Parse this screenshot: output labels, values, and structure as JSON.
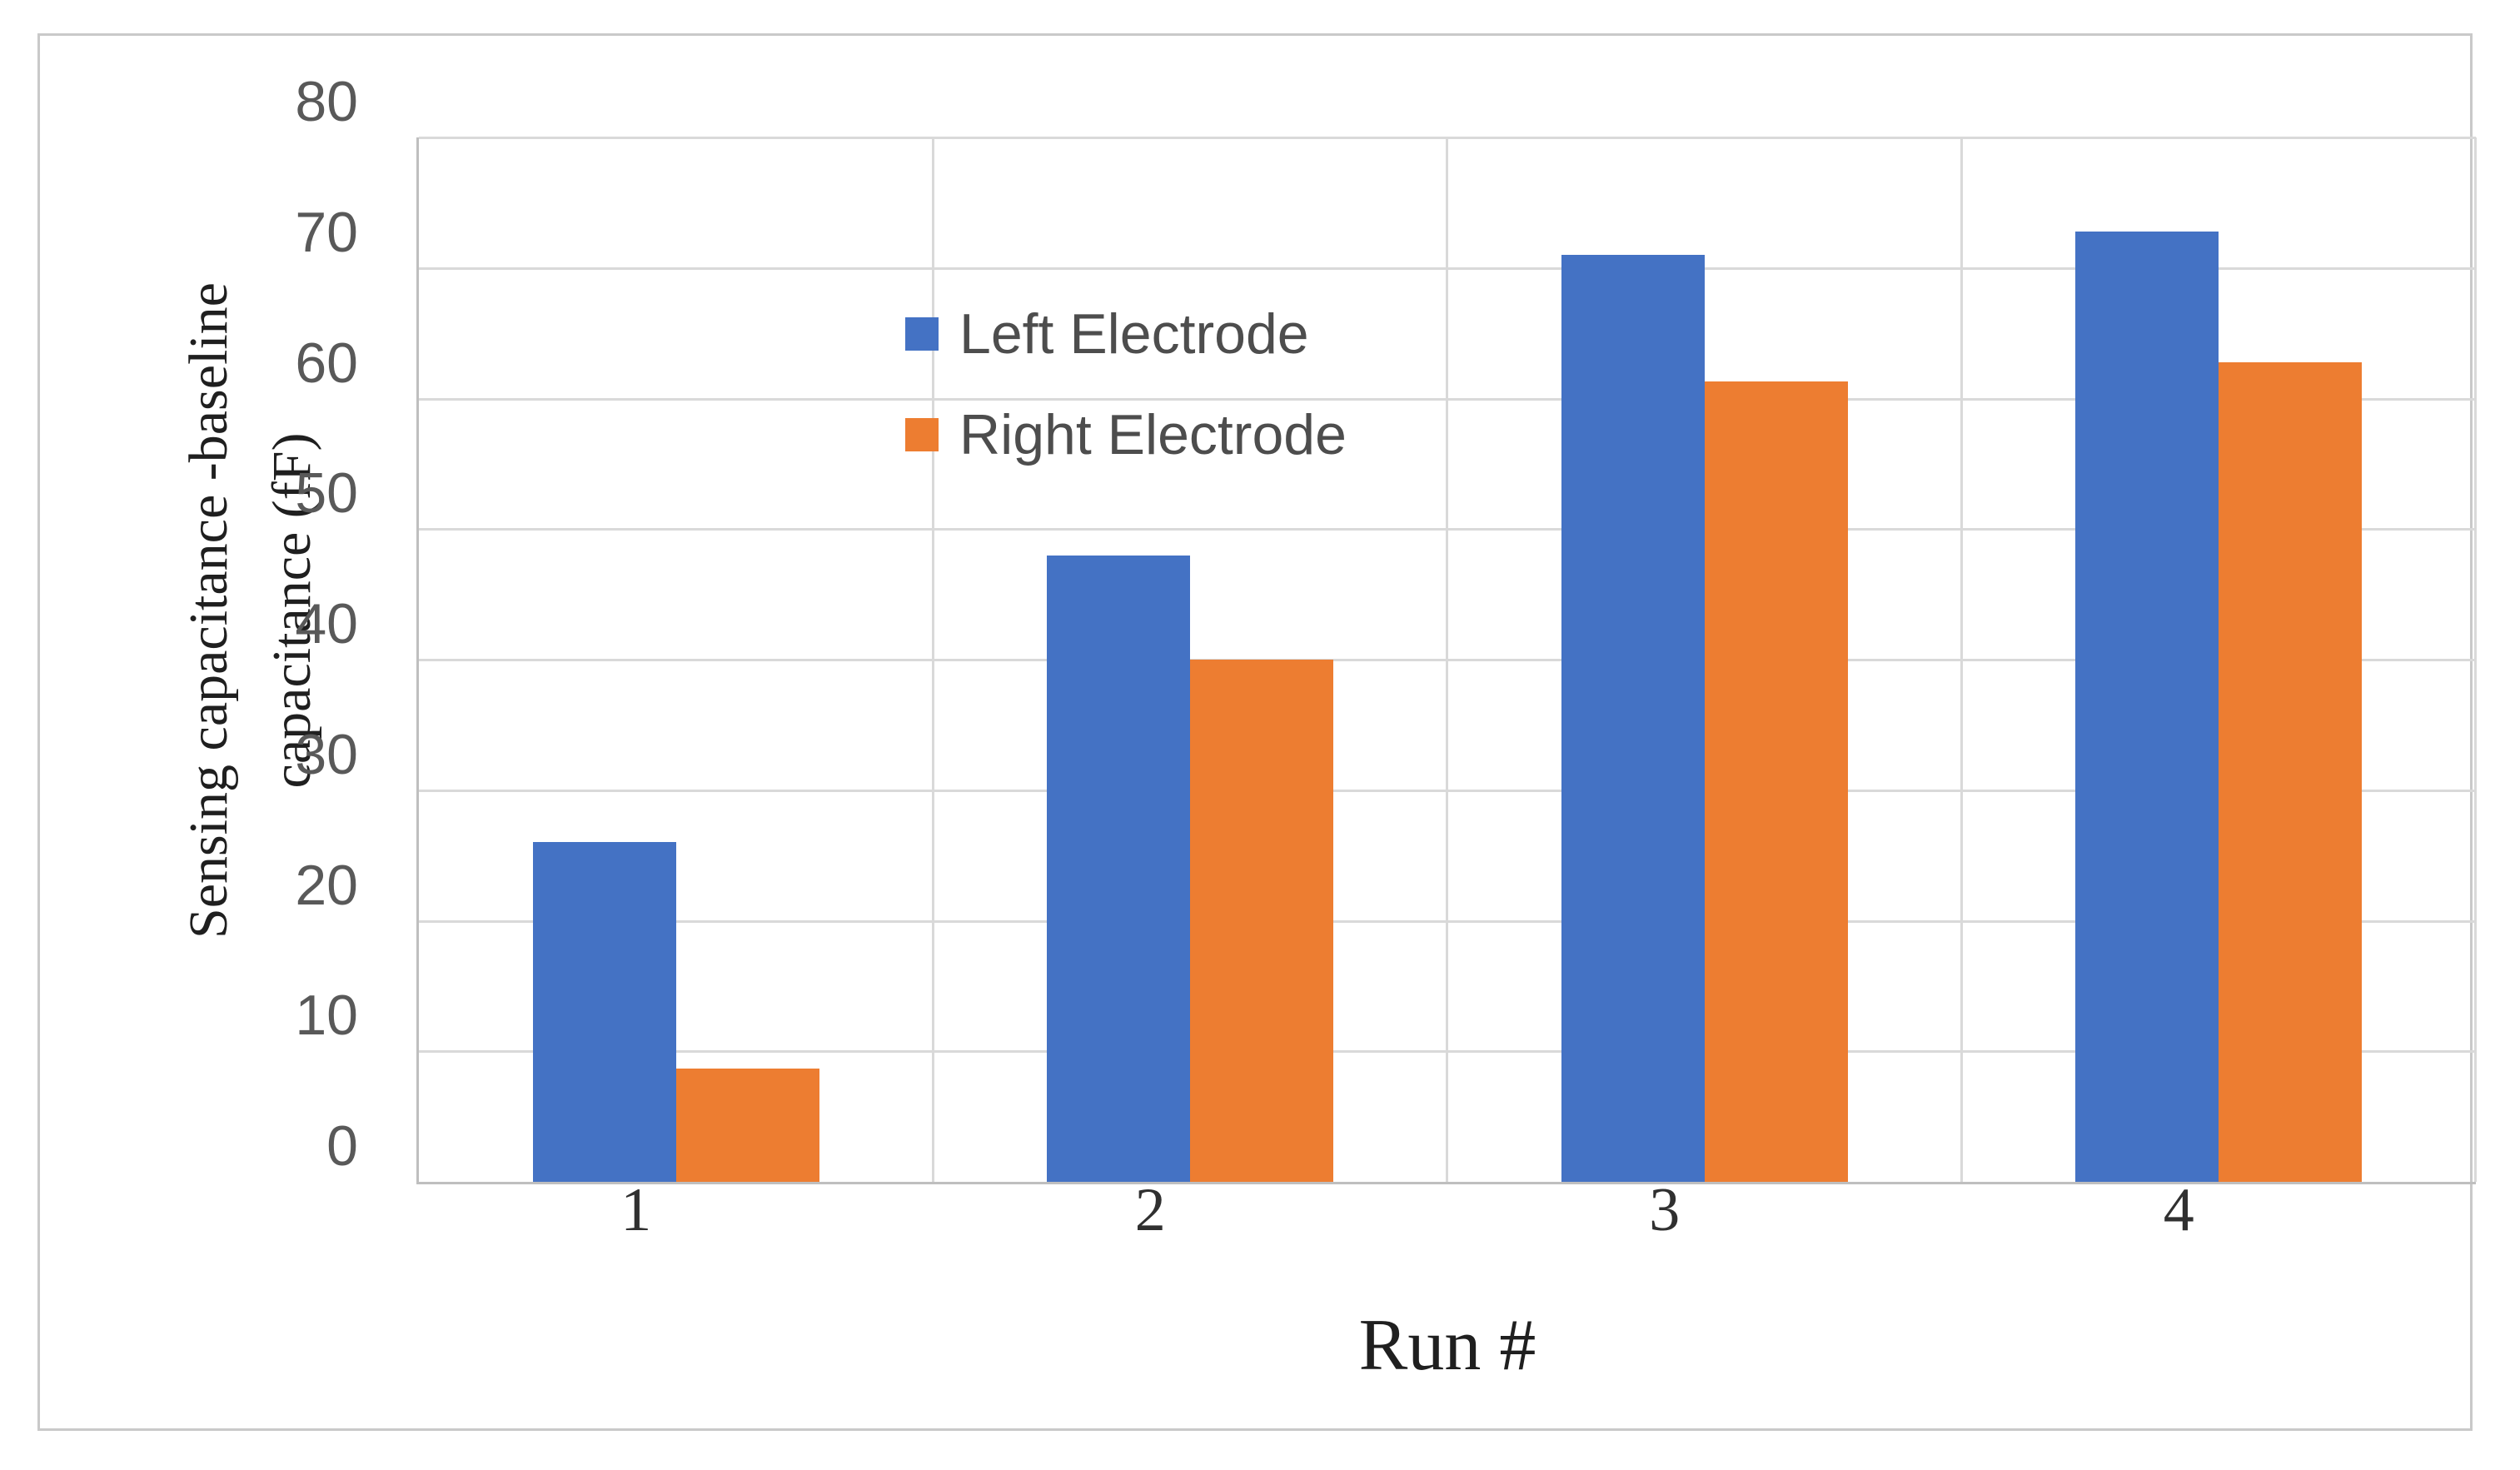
{
  "figure": {
    "background_color": "#ffffff",
    "border_color": "#c9c9c9"
  },
  "chart_data": {
    "type": "bar",
    "title": "",
    "categories": [
      "1",
      "2",
      "3",
      "4"
    ],
    "series": [
      {
        "name": "Left Electrode",
        "color": "#4472C4",
        "values": [
          26.0,
          48.0,
          71.0,
          72.8
        ]
      },
      {
        "name": "Right Electrode",
        "color": "#ED7D31",
        "values": [
          8.7,
          40.0,
          61.3,
          62.8
        ]
      }
    ],
    "xlabel": "Run #",
    "ylabel": "Sensing capacitance -baseline capacitance (fF)",
    "ylabel_line1": "Sensing capacitance -baseline",
    "ylabel_line2": "capacitance (fF)",
    "ylim": [
      0,
      80
    ],
    "yticks": [
      0,
      10,
      20,
      30,
      40,
      50,
      60,
      70,
      80
    ],
    "grid": "horizontal major gridlines + vertical category boundary lines",
    "gridline_color": "#d9d9d9",
    "axis_line_color": "#bfbfbf",
    "tick_label_color": "#595959",
    "legend_position": "inside top-left"
  }
}
